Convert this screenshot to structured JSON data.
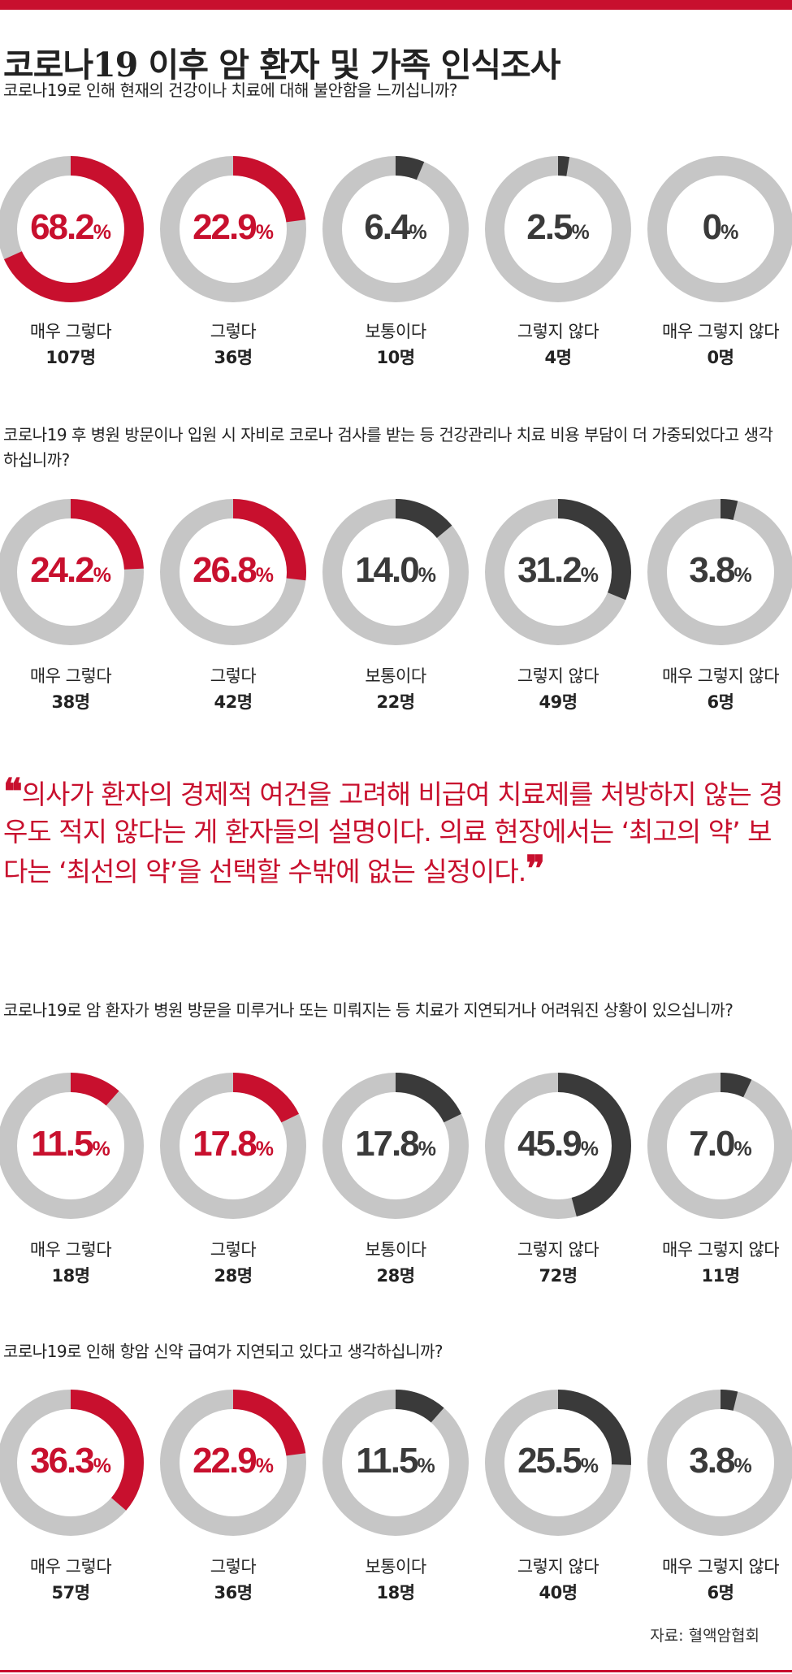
{
  "title": "코로나19 이후 암 환자 및 가족 인식조사",
  "colors": {
    "accent": "#c8102e",
    "dark": "#3a3a3a",
    "ring": "#c6c6c6",
    "dark_text": "#3a3a3a"
  },
  "chart_data": [
    {
      "type": "pie",
      "question": "코로나19로 인해 현재의 건강이나 치료에 대해 불안함을 느끼십니까?",
      "categories": [
        "매우 그렇다",
        "그렇다",
        "보통이다",
        "그렇지 않다",
        "매우 그렇지 않다"
      ],
      "values": [
        68.2,
        22.9,
        6.4,
        2.5,
        0
      ],
      "value_labels": [
        "68.2",
        "22.9",
        "6.4",
        "2.5",
        "0"
      ],
      "counts": [
        "107명",
        "36명",
        "10명",
        "4명",
        "0명"
      ]
    },
    {
      "type": "pie",
      "question": "코로나19 후 병원 방문이나 입원 시 자비로 코로나 검사를 받는 등 건강관리나 치료 비용 부담이 더 가중되었다고 생각하십니까?",
      "categories": [
        "매우 그렇다",
        "그렇다",
        "보통이다",
        "그렇지 않다",
        "매우 그렇지 않다"
      ],
      "values": [
        24.2,
        26.8,
        14.0,
        31.2,
        3.8
      ],
      "value_labels": [
        "24.2",
        "26.8",
        "14.0",
        "31.2",
        "3.8"
      ],
      "counts": [
        "38명",
        "42명",
        "22명",
        "49명",
        "6명"
      ]
    },
    {
      "type": "pie",
      "question": "코로나19로 암 환자가 병원 방문을 미루거나 또는 미뤄지는 등 치료가 지연되거나 어려워진 상황이 있으십니까?",
      "categories": [
        "매우 그렇다",
        "그렇다",
        "보통이다",
        "그렇지 않다",
        "매우 그렇지 않다"
      ],
      "values": [
        11.5,
        17.8,
        17.8,
        45.9,
        7.0
      ],
      "value_labels": [
        "11.5",
        "17.8",
        "17.8",
        "45.9",
        "7.0"
      ],
      "counts": [
        "18명",
        "28명",
        "28명",
        "72명",
        "11명"
      ]
    },
    {
      "type": "pie",
      "question": "코로나19로 인해 항암 신약 급여가 지연되고 있다고 생각하십니까?",
      "categories": [
        "매우 그렇다",
        "그렇다",
        "보통이다",
        "그렇지 않다",
        "매우 그렇지 않다"
      ],
      "values": [
        36.3,
        22.9,
        11.5,
        25.5,
        3.8
      ],
      "value_labels": [
        "36.3",
        "22.9",
        "11.5",
        "25.5",
        "3.8"
      ],
      "counts": [
        "57명",
        "36명",
        "18명",
        "40명",
        "6명"
      ]
    }
  ],
  "percent_unit": "%",
  "quote": {
    "open_mark": "❝",
    "text": "의사가 환자의 경제적 여건을 고려해 비급여 치료제를 처방하지 않는 경우도 적지 않다는 게 환자들의 설명이다. 의료 현장에서는 ‘최고의 약’ 보다는 ‘최선의 약’을 선택할 수밖에 없는 실정이다.",
    "close_mark": "❞"
  },
  "source": "자료: 혈액암협회"
}
